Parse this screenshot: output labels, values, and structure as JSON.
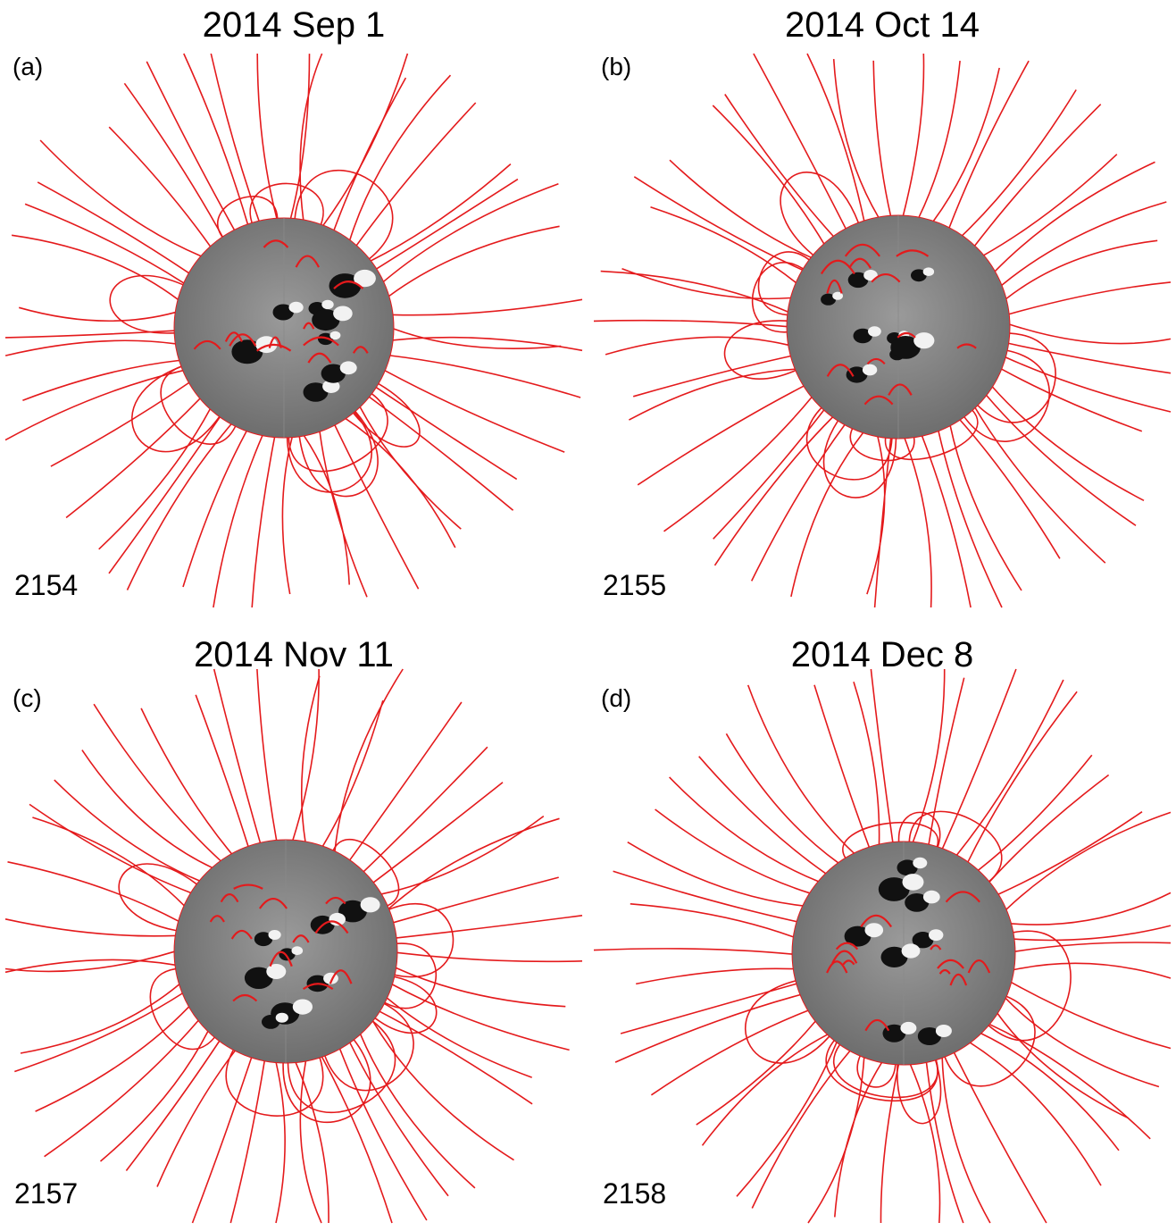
{
  "colors": {
    "field_line": "#e41a1c",
    "disk_gray": "#808080",
    "background": "#ffffff"
  },
  "panels": [
    {
      "title": "2014 Sep 1",
      "label": "(a)",
      "rotation": "2154"
    },
    {
      "title": "2014 Oct 14",
      "label": "(b)",
      "rotation": "2155"
    },
    {
      "title": "2014 Nov 11",
      "label": "(c)",
      "rotation": "2157"
    },
    {
      "title": "2014 Dec 8",
      "label": "(d)",
      "rotation": "2158"
    }
  ]
}
